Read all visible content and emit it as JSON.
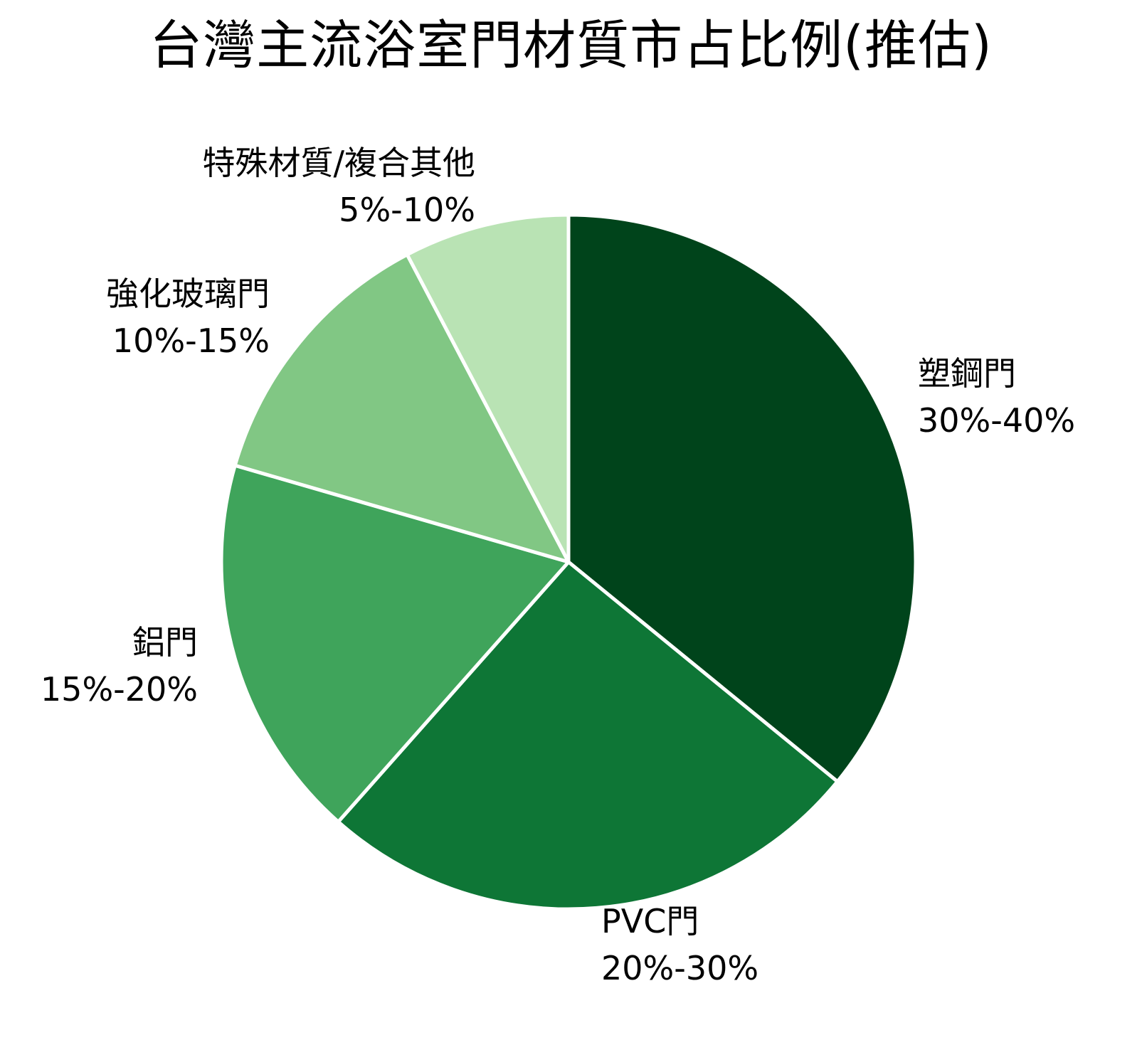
{
  "chart_data": {
    "type": "pie",
    "title": "台灣主流浴室門材質市占比例(推估)",
    "start_angle": "top, clockwise",
    "slices": [
      {
        "name": "塑鋼門",
        "range": "30%-40%",
        "value": 35,
        "color": "#00441b"
      },
      {
        "name": "PVC門",
        "range": "20%-30%",
        "value": 25,
        "color": "#0e7636"
      },
      {
        "name": "鋁門",
        "range": "15%-20%",
        "value": 17.5,
        "color": "#3fa45b"
      },
      {
        "name": "強化玻璃門",
        "range": "10%-15%",
        "value": 12.5,
        "color": "#81c784"
      },
      {
        "name": "特殊材質/複合其他",
        "range": "5%-10%",
        "value": 7.5,
        "color": "#b9e3b4"
      }
    ],
    "legend": "none (labels placed beside slices)"
  },
  "title": "台灣主流浴室門材質市占比例(推估)",
  "labels": [
    {
      "name": "塑鋼門",
      "range": "30%-40%"
    },
    {
      "name": "PVC門",
      "range": "20%-30%"
    },
    {
      "name": "鋁門",
      "range": "15%-20%"
    },
    {
      "name": "強化玻璃門",
      "range": "10%-15%"
    },
    {
      "name": "特殊材質/複合其他",
      "range": "5%-10%"
    }
  ],
  "style": {
    "slice_edge_color": "#ffffff",
    "background": "#ffffff"
  }
}
